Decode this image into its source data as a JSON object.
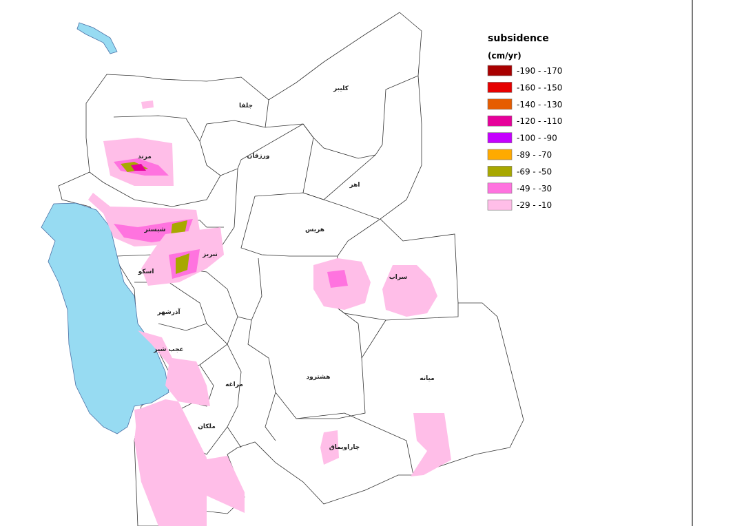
{
  "legend": {
    "title": "subsidence",
    "unit": "(cm/yr)",
    "items": [
      {
        "label": "-190 - -170",
        "color": "#a80000"
      },
      {
        "label": "-160 - -150",
        "color": "#e60000"
      },
      {
        "label": "-140 - -130",
        "color": "#e65c00"
      },
      {
        "label": "-120 - -110",
        "color": "#e6009a"
      },
      {
        "label": "-100 - -90",
        "color": "#c500ff"
      },
      {
        "label": "-89 - -70",
        "color": "#ffaa00"
      },
      {
        "label": "-69 - -50",
        "color": "#a8a800"
      },
      {
        "label": "-49 - -30",
        "color": "#ff73df"
      },
      {
        "label": "-29 - -10",
        "color": "#ffbee8"
      }
    ]
  },
  "counties": [
    "جلفا",
    "کلیبر",
    "مرند",
    "ورزقان",
    "اهر",
    "شبستر",
    "تبریز",
    "هریس",
    "اسکو",
    "سراب",
    "آذرشهر",
    "عجب شیر",
    "مراغه",
    "هشترود",
    "میانه",
    "ملکان",
    "چاراویماق"
  ]
}
